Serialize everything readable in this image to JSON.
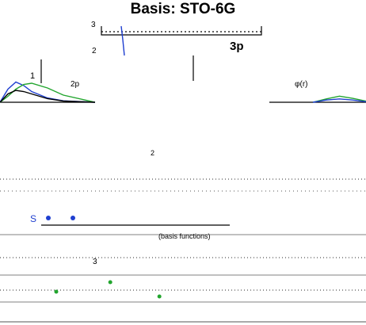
{
  "chart_data": {
    "type": "line",
    "title": "Basis: STO-6G",
    "panel_labels": [
      "3p",
      "2p",
      "1"
    ],
    "ytick_labels": [
      "3",
      "2",
      "1"
    ],
    "annotations": [
      "φ(r)",
      "(basis functions)",
      "3",
      "2",
      "S"
    ],
    "xlabel": "",
    "ylabel": "",
    "grid": false,
    "colors": {
      "blue": "#1f3fd0",
      "green": "#22a52e",
      "black": "#000000",
      "gray": "#9a9a9a"
    },
    "series": [
      {
        "color": "blue",
        "x": [
          0.0,
          0.25,
          0.5,
          0.75,
          1.0,
          1.5,
          2.0,
          3.0
        ],
        "values": [
          0.0,
          0.55,
          0.85,
          0.7,
          0.45,
          0.18,
          0.06,
          0.0
        ]
      },
      {
        "color": "green",
        "x": [
          0.0,
          0.25,
          0.5,
          0.75,
          1.0,
          1.5,
          2.0,
          3.0
        ],
        "values": [
          0.0,
          0.25,
          0.55,
          0.75,
          0.8,
          0.6,
          0.3,
          0.0
        ]
      },
      {
        "color": "black",
        "x": [
          0.0,
          0.25,
          0.5,
          0.75,
          1.0,
          1.5,
          2.0,
          3.0
        ],
        "values": [
          0.0,
          0.35,
          0.5,
          0.45,
          0.35,
          0.15,
          0.05,
          0.0
        ]
      }
    ],
    "right_panel_series": [
      {
        "color": "green",
        "x": [
          0.0,
          0.5,
          1.0,
          1.5,
          2.0
        ],
        "values": [
          0.0,
          0.3,
          0.55,
          0.35,
          0.1
        ]
      },
      {
        "color": "blue",
        "x": [
          0.0,
          0.5,
          1.0,
          1.5,
          2.0
        ],
        "values": [
          0.0,
          0.2,
          0.3,
          0.2,
          0.05
        ]
      }
    ],
    "s_points": {
      "x": [
        1.0,
        2.0
      ],
      "y": [
        1.0,
        1.0
      ]
    },
    "green_points": {
      "x": [
        0.5,
        1.6,
        2.6
      ],
      "y": [
        0.4,
        0.8,
        0.2
      ]
    }
  }
}
